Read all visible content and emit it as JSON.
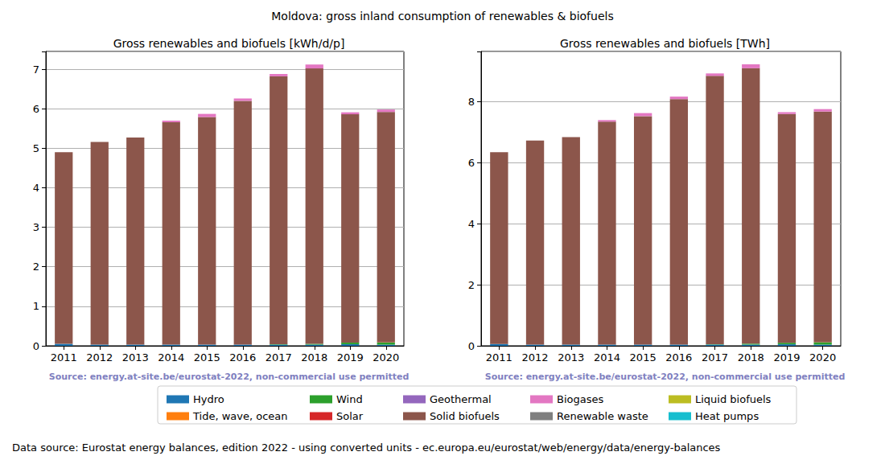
{
  "title": "Moldova: gross inland consumption of renewables & biofuels",
  "footer": "Data source: Eurostat energy balances, edition 2022 - using converted units - ec.europa.eu/eurostat/web/energy/data/energy-balances",
  "legend": "lower center",
  "chart_data": [
    {
      "type": "bar",
      "stacked": true,
      "grid": true,
      "title": "Gross renewables and biofuels [kWh/d/p]",
      "annotations": [
        "Source: energy.at-site.be/eurostat-2022, non-commercial use permitted"
      ],
      "categories": [
        "2011",
        "2012",
        "2013",
        "2014",
        "2015",
        "2016",
        "2017",
        "2018",
        "2019",
        "2020"
      ],
      "ylim": [
        0,
        7.45
      ],
      "yticks": [
        0,
        1,
        2,
        3,
        4,
        5,
        6,
        7
      ],
      "series": [
        {
          "name": "Hydro",
          "color": "#1f77b4",
          "values": [
            0.05,
            0.03,
            0.03,
            0.03,
            0.03,
            0.03,
            0.03,
            0.03,
            0.04,
            0.03
          ]
        },
        {
          "name": "Tide, wave, ocean",
          "color": "#ff7f0e",
          "values": [
            0,
            0,
            0,
            0,
            0,
            0,
            0,
            0,
            0,
            0
          ]
        },
        {
          "name": "Wind",
          "color": "#2ca02c",
          "values": [
            0,
            0,
            0,
            0,
            0,
            0,
            0.01,
            0.02,
            0.04,
            0.06
          ]
        },
        {
          "name": "Solar",
          "color": "#d62728",
          "values": [
            0,
            0,
            0,
            0,
            0,
            0,
            0,
            0,
            0,
            0.01
          ]
        },
        {
          "name": "Geothermal",
          "color": "#9467bd",
          "values": [
            0,
            0,
            0,
            0,
            0,
            0,
            0,
            0,
            0,
            0
          ]
        },
        {
          "name": "Solid biofuels",
          "color": "#8c564b",
          "values": [
            4.85,
            5.13,
            5.24,
            5.63,
            5.76,
            6.17,
            6.78,
            6.97,
            5.78,
            5.82
          ]
        },
        {
          "name": "Biogases",
          "color": "#e377c2",
          "values": [
            0,
            0,
            0,
            0.04,
            0.08,
            0.06,
            0.06,
            0.1,
            0.05,
            0.06
          ]
        },
        {
          "name": "Renewable waste",
          "color": "#7f7f7f",
          "values": [
            0,
            0,
            0,
            0,
            0,
            0,
            0,
            0,
            0,
            0
          ]
        },
        {
          "name": "Liquid biofuels",
          "color": "#bcbd22",
          "values": [
            0,
            0,
            0,
            0,
            0,
            0,
            0,
            0,
            0,
            0
          ]
        },
        {
          "name": "Heat pumps",
          "color": "#17becf",
          "values": [
            0,
            0,
            0,
            0,
            0,
            0,
            0,
            0,
            0,
            0
          ]
        }
      ]
    },
    {
      "type": "bar",
      "stacked": true,
      "grid": true,
      "title": "Gross renewables and biofuels [TWh]",
      "annotations": [
        "Source: energy.at-site.be/eurostat-2022, non-commercial use permitted"
      ],
      "categories": [
        "2011",
        "2012",
        "2013",
        "2014",
        "2015",
        "2016",
        "2017",
        "2018",
        "2019",
        "2020"
      ],
      "ylim": [
        0,
        9.65
      ],
      "yticks": [
        0,
        2,
        4,
        6,
        8
      ],
      "series": [
        {
          "name": "Hydro",
          "color": "#1f77b4",
          "values": [
            0.06,
            0.04,
            0.04,
            0.04,
            0.04,
            0.04,
            0.04,
            0.04,
            0.05,
            0.04
          ]
        },
        {
          "name": "Tide, wave, ocean",
          "color": "#ff7f0e",
          "values": [
            0,
            0,
            0,
            0,
            0,
            0,
            0,
            0,
            0,
            0
          ]
        },
        {
          "name": "Wind",
          "color": "#2ca02c",
          "values": [
            0,
            0,
            0,
            0,
            0,
            0,
            0.01,
            0.03,
            0.05,
            0.08
          ]
        },
        {
          "name": "Solar",
          "color": "#d62728",
          "values": [
            0,
            0,
            0,
            0,
            0,
            0,
            0,
            0,
            0,
            0.01
          ]
        },
        {
          "name": "Geothermal",
          "color": "#9467bd",
          "values": [
            0,
            0,
            0,
            0,
            0,
            0,
            0,
            0,
            0,
            0
          ]
        },
        {
          "name": "Solid biofuels",
          "color": "#8c564b",
          "values": [
            6.29,
            6.69,
            6.8,
            7.31,
            7.49,
            8.05,
            8.8,
            9.03,
            7.5,
            7.55
          ]
        },
        {
          "name": "Biogases",
          "color": "#e377c2",
          "values": [
            0,
            0,
            0,
            0.05,
            0.1,
            0.08,
            0.08,
            0.13,
            0.06,
            0.08
          ]
        },
        {
          "name": "Renewable waste",
          "color": "#7f7f7f",
          "values": [
            0,
            0,
            0,
            0,
            0,
            0,
            0,
            0,
            0,
            0
          ]
        },
        {
          "name": "Liquid biofuels",
          "color": "#bcbd22",
          "values": [
            0,
            0,
            0,
            0,
            0,
            0,
            0,
            0,
            0,
            0
          ]
        },
        {
          "name": "Heat pumps",
          "color": "#17becf",
          "values": [
            0,
            0,
            0,
            0,
            0,
            0,
            0,
            0,
            0,
            0
          ]
        }
      ]
    }
  ]
}
